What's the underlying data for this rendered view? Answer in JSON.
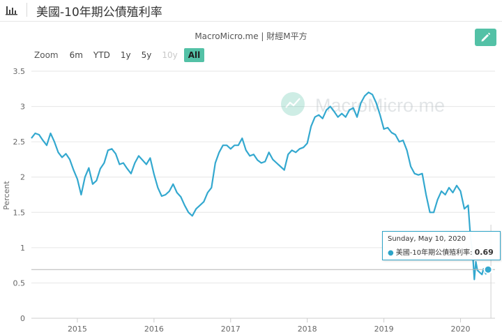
{
  "header": {
    "title": "美國-10年期公債殖利率"
  },
  "subtitle": "MacroMicro.me | 財經M平方",
  "watermark": "MacroMicro.me",
  "zoom": {
    "label": "Zoom",
    "buttons": [
      {
        "label": "6m",
        "state": "normal"
      },
      {
        "label": "YTD",
        "state": "normal"
      },
      {
        "label": "1y",
        "state": "normal"
      },
      {
        "label": "5y",
        "state": "normal"
      },
      {
        "label": "10y",
        "state": "disabled"
      },
      {
        "label": "All",
        "state": "active"
      }
    ]
  },
  "tooltip": {
    "date": "Sunday, May 10, 2020",
    "series": "美國-10年期公債殖利率",
    "value": "0.69"
  },
  "colors": {
    "line": "#33a8cf",
    "accent": "#53c1a6"
  },
  "chart_data": {
    "type": "line",
    "title": "美國-10年期公債殖利率",
    "ylabel": "Percent",
    "xlabel": "",
    "ylim": [
      0,
      3.5
    ],
    "yticks": [
      "0",
      "0.5",
      "1",
      "1.5",
      "2",
      "2.5",
      "3",
      "3.5"
    ],
    "xticks": [
      "2015",
      "2016",
      "2017",
      "2018",
      "2019",
      "2020"
    ],
    "xrange": [
      2014.4,
      2020.45
    ],
    "series": [
      {
        "name": "美國-10年期公債殖利率",
        "x": [
          2014.4,
          2014.45,
          2014.5,
          2014.55,
          2014.6,
          2014.65,
          2014.7,
          2014.75,
          2014.8,
          2014.85,
          2014.9,
          2014.95,
          2015.0,
          2015.05,
          2015.1,
          2015.15,
          2015.2,
          2015.25,
          2015.3,
          2015.35,
          2015.4,
          2015.45,
          2015.5,
          2015.55,
          2015.6,
          2015.65,
          2015.7,
          2015.75,
          2015.8,
          2015.85,
          2015.9,
          2015.95,
          2016.0,
          2016.05,
          2016.1,
          2016.15,
          2016.2,
          2016.25,
          2016.3,
          2016.35,
          2016.4,
          2016.45,
          2016.5,
          2016.55,
          2016.6,
          2016.65,
          2016.7,
          2016.75,
          2016.8,
          2016.85,
          2016.9,
          2016.95,
          2017.0,
          2017.05,
          2017.1,
          2017.15,
          2017.2,
          2017.25,
          2017.3,
          2017.35,
          2017.4,
          2017.45,
          2017.5,
          2017.55,
          2017.6,
          2017.65,
          2017.7,
          2017.75,
          2017.8,
          2017.85,
          2017.9,
          2017.95,
          2018.0,
          2018.05,
          2018.1,
          2018.15,
          2018.2,
          2018.25,
          2018.3,
          2018.35,
          2018.4,
          2018.45,
          2018.5,
          2018.55,
          2018.6,
          2018.65,
          2018.7,
          2018.75,
          2018.8,
          2018.85,
          2018.9,
          2018.95,
          2019.0,
          2019.05,
          2019.1,
          2019.15,
          2019.2,
          2019.25,
          2019.3,
          2019.35,
          2019.4,
          2019.45,
          2019.5,
          2019.55,
          2019.6,
          2019.65,
          2019.7,
          2019.75,
          2019.8,
          2019.85,
          2019.9,
          2019.95,
          2020.0,
          2020.05,
          2020.1,
          2020.13,
          2020.16,
          2020.18,
          2020.2,
          2020.22,
          2020.25,
          2020.28,
          2020.3,
          2020.33,
          2020.36
        ],
        "y": [
          2.55,
          2.62,
          2.6,
          2.52,
          2.45,
          2.62,
          2.5,
          2.35,
          2.28,
          2.33,
          2.25,
          2.1,
          1.97,
          1.75,
          2.0,
          2.13,
          1.9,
          1.95,
          2.12,
          2.2,
          2.38,
          2.4,
          2.33,
          2.18,
          2.2,
          2.12,
          2.05,
          2.2,
          2.3,
          2.24,
          2.18,
          2.27,
          2.04,
          1.85,
          1.73,
          1.75,
          1.8,
          1.9,
          1.78,
          1.72,
          1.6,
          1.5,
          1.45,
          1.55,
          1.6,
          1.65,
          1.78,
          1.85,
          2.2,
          2.35,
          2.45,
          2.45,
          2.4,
          2.45,
          2.45,
          2.55,
          2.38,
          2.3,
          2.32,
          2.24,
          2.2,
          2.22,
          2.35,
          2.25,
          2.2,
          2.15,
          2.1,
          2.32,
          2.38,
          2.35,
          2.4,
          2.42,
          2.48,
          2.72,
          2.85,
          2.88,
          2.83,
          2.95,
          3.0,
          2.93,
          2.85,
          2.9,
          2.85,
          2.95,
          2.98,
          2.85,
          3.05,
          3.15,
          3.2,
          3.17,
          3.05,
          2.88,
          2.68,
          2.7,
          2.63,
          2.6,
          2.5,
          2.52,
          2.38,
          2.15,
          2.05,
          2.03,
          2.05,
          1.75,
          1.5,
          1.5,
          1.68,
          1.8,
          1.75,
          1.85,
          1.78,
          1.88,
          1.8,
          1.55,
          1.6,
          1.15,
          0.9,
          0.55,
          0.8,
          0.68,
          0.65,
          0.62,
          0.7,
          0.63,
          0.69
        ]
      }
    ],
    "highlight": {
      "x": 2020.36,
      "y": 0.69
    },
    "crosshair_y": 0.69
  }
}
